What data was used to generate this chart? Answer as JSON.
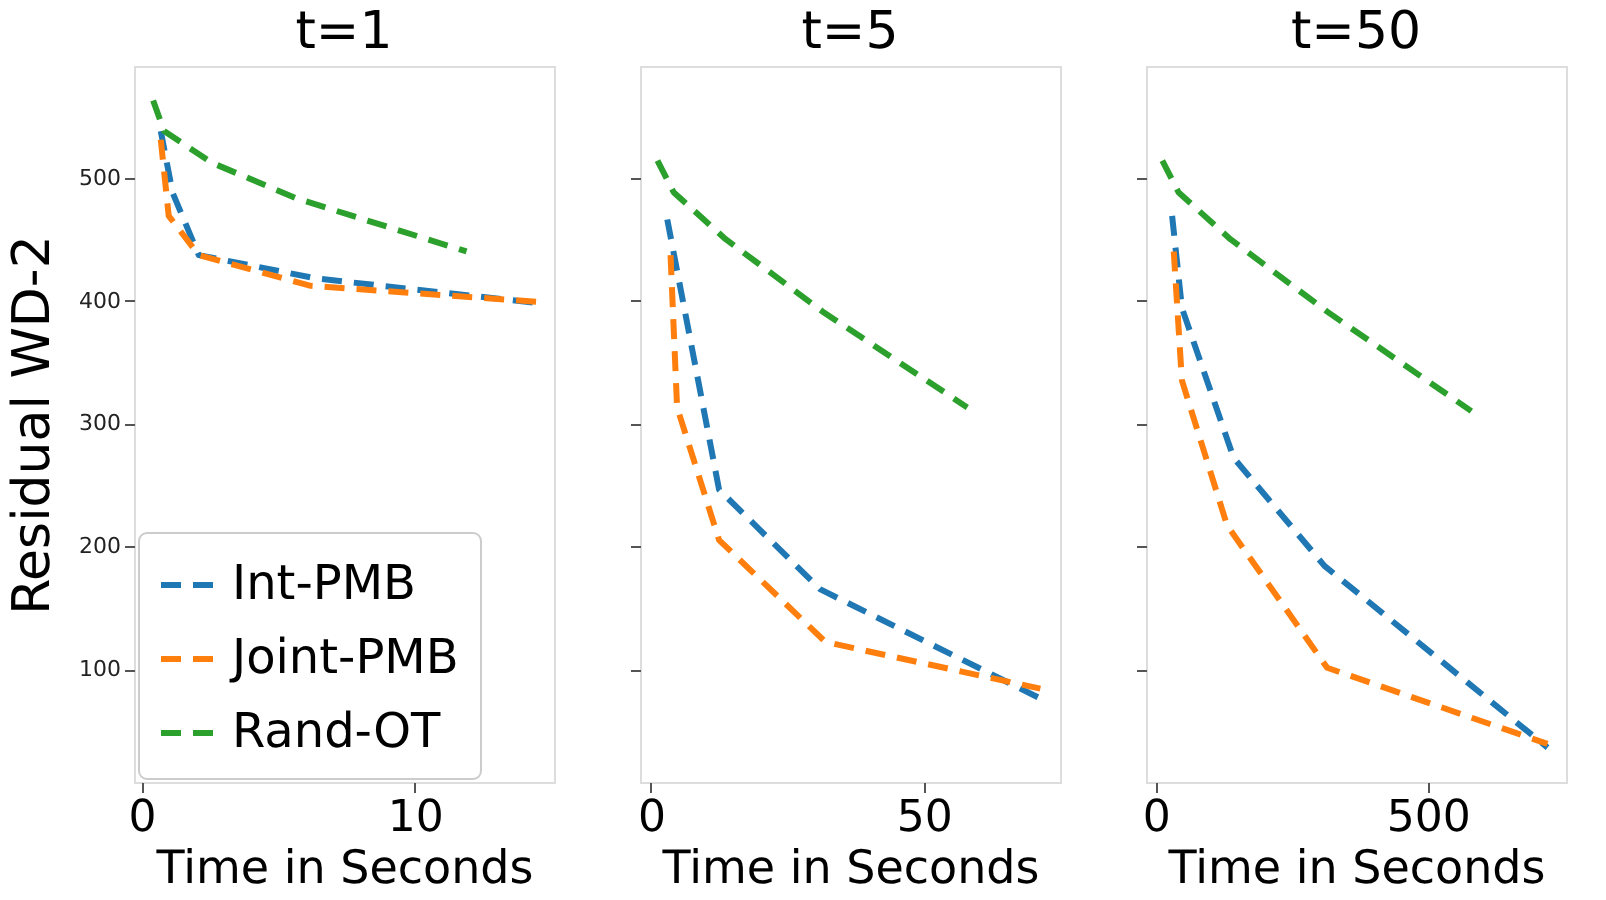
{
  "chart_data": [
    {
      "type": "line",
      "title": "t=1",
      "xlabel": "Time in Seconds",
      "ylabel": "Residual WD-2",
      "xlim": [
        -0.27,
        15.1
      ],
      "xticks": [
        0,
        10
      ],
      "ylim": [
        8,
        591
      ],
      "yticks": [
        100,
        200,
        300,
        400,
        500
      ],
      "line_style": "dashed",
      "grid": false,
      "legend": "bottom left",
      "series": [
        {
          "name": "Int-PMB",
          "color": "#1f77b4",
          "x": [
            0.71,
            1.14,
            2.1,
            6.4,
            14.5
          ],
          "values": [
            538,
            488,
            437,
            418,
            398
          ]
        },
        {
          "name": "Joint-PMB",
          "color": "#ff7f0e",
          "x": [
            0.71,
            1.0,
            2.1,
            6.2,
            14.5
          ],
          "values": [
            531,
            469,
            437,
            412,
            399
          ]
        },
        {
          "name": "Rand-OT",
          "color": "#2ca02c",
          "x": [
            0.43,
            0.83,
            2.6,
            5.7,
            11.9
          ],
          "values": [
            563,
            538,
            512,
            483,
            440
          ]
        }
      ]
    },
    {
      "type": "line",
      "title": "t=5",
      "xlabel": "Time in Seconds",
      "xlim": [
        -2,
        75
      ],
      "xticks": [
        0,
        50
      ],
      "ylim": [
        8,
        591
      ],
      "yticks": [
        100,
        200,
        300,
        400,
        500
      ],
      "line_style": "dashed",
      "grid": false,
      "tick_labels": "x",
      "series": [
        {
          "color": "#1f77b4",
          "x": [
            3.0,
            12.5,
            31,
            71.4
          ],
          "values": [
            466,
            246,
            165,
            76
          ]
        },
        {
          "color": "#ff7f0e",
          "x": [
            3.6,
            4.8,
            12.5,
            32,
            71.4
          ],
          "values": [
            437,
            313,
            205,
            122,
            84
          ]
        },
        {
          "color": "#2ca02c",
          "x": [
            1.2,
            4.2,
            13.7,
            31.5,
            58
          ],
          "values": [
            514,
            488,
            450,
            391,
            313
          ]
        }
      ]
    },
    {
      "type": "line",
      "title": "t=50",
      "xlabel": "Time in Seconds",
      "xlim": [
        -18,
        754
      ],
      "xticks": [
        0,
        500
      ],
      "ylim": [
        8,
        591
      ],
      "yticks": [
        100,
        200,
        300,
        400,
        500
      ],
      "line_style": "dashed",
      "grid": false,
      "tick_labels": "x",
      "series": [
        {
          "color": "#1f77b4",
          "x": [
            30,
            48,
            143,
            310,
            720
          ],
          "values": [
            469,
            394,
            272,
            184,
            36
          ]
        },
        {
          "color": "#ff7f0e",
          "x": [
            33,
            48,
            131,
            315,
            720
          ],
          "values": [
            440,
            335,
            217,
            101,
            39
          ]
        },
        {
          "color": "#2ca02c",
          "x": [
            12,
            42,
            137,
            315,
            580
          ],
          "values": [
            514,
            488,
            450,
            391,
            310
          ]
        }
      ]
    }
  ]
}
